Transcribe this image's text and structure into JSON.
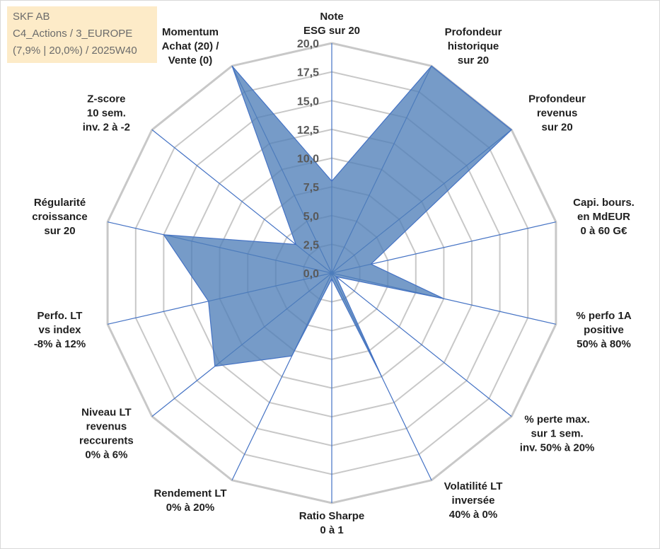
{
  "info_box": {
    "line1": "SKF AB",
    "line2": "C4_Actions / 3_EUROPE",
    "line3": "(7,9% | 20,0%) / 2025W40"
  },
  "chart_data": {
    "type": "radar",
    "r_range": [
      0,
      20
    ],
    "r_ticks": [
      "0,0",
      "2,5",
      "5,0",
      "7,5",
      "10,0",
      "12,5",
      "15,0",
      "17,5",
      "20,0"
    ],
    "grid": true,
    "axes": [
      {
        "lines": [
          "Note",
          "ESG sur 20"
        ],
        "value": 8.0
      },
      {
        "lines": [
          "Profondeur",
          "historique",
          "sur 20"
        ],
        "value": 20.0
      },
      {
        "lines": [
          "Profondeur",
          "revenus",
          "sur 20"
        ],
        "value": 20.0
      },
      {
        "lines": [
          "Capi. bours.",
          "en MdEUR",
          "0 à 60 G€"
        ],
        "value": 3.5
      },
      {
        "lines": [
          "% perfo 1A",
          "positive",
          "50% à 80%"
        ],
        "value": 10.0
      },
      {
        "lines": [
          "% perte max.",
          "sur 1 sem.",
          "inv. 50% à 20%"
        ],
        "value": 0.5
      },
      {
        "lines": [
          "Volatilité LT",
          "inversée",
          "40% à 0%"
        ],
        "value": 10.0
      },
      {
        "lines": [
          "Ratio Sharpe",
          "0 à 1"
        ],
        "value": 0.5
      },
      {
        "lines": [
          "Rendement LT",
          "0% à 20%"
        ],
        "value": 8.0
      },
      {
        "lines": [
          "Niveau LT",
          "revenus",
          "reccurents",
          "0% à 6%"
        ],
        "value": 13.0
      },
      {
        "lines": [
          "Perfo. LT",
          "vs index",
          "-8% à 12%"
        ],
        "value": 11.0
      },
      {
        "lines": [
          "Régularité",
          "croissance",
          "sur 20"
        ],
        "value": 15.0
      },
      {
        "lines": [
          "Z-score",
          "10 sem.",
          "inv. 2 à -2"
        ],
        "value": 4.0
      },
      {
        "lines": [
          "Momentum",
          "Achat (20) /",
          "Vente (0)"
        ],
        "value": 20.0
      }
    ],
    "colors": {
      "fill": "#4f7fb8",
      "stroke": "#4472c4",
      "spoke": "#4472c4",
      "grid": "#c8c8c8",
      "text": "#1f1f1f",
      "tick_text": "#595959"
    }
  }
}
